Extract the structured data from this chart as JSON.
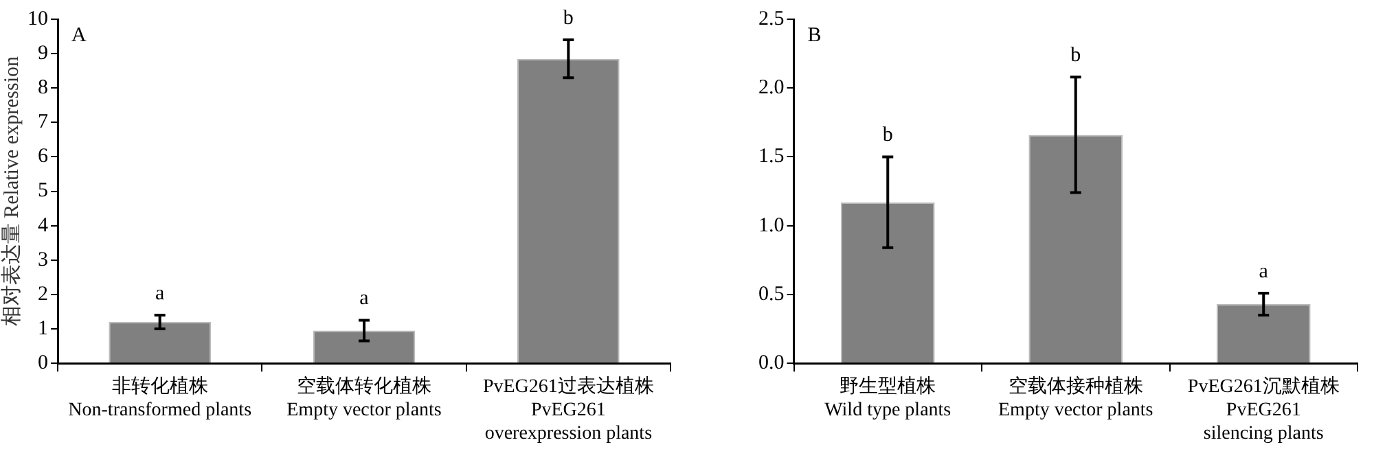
{
  "chart_data": [
    {
      "type": "bar",
      "ylabel": "相对表达量 Relative expression",
      "categories": [
        "非转化植株\nNon-transformed plants",
        "空载体转化植株\nEmpty vector plants",
        "PvEG261过表达植株\nPvEG261\noverexpression plants"
      ],
      "values": [
        1.2,
        0.95,
        8.85
      ],
      "errors": [
        0.2,
        0.3,
        0.55
      ],
      "color": "#808080",
      "ylim": [
        0,
        10
      ],
      "yticks": [
        0,
        1,
        2,
        3,
        4,
        5,
        6,
        7,
        8,
        9,
        10
      ],
      "grid": false,
      "legend": false,
      "annotations": [
        "A",
        "a",
        "a",
        "b"
      ]
    },
    {
      "type": "bar",
      "categories": [
        "野生型植株\nWild type plants",
        "空载体接种植株\nEmpty vector plants",
        "PvEG261沉默植株\nPvEG261\nsilencing plants"
      ],
      "values": [
        1.17,
        1.66,
        0.43
      ],
      "errors": [
        0.33,
        0.42,
        0.08
      ],
      "color": "#808080",
      "ylim": [
        0,
        2.5
      ],
      "yticks": [
        {
          "value": 0,
          "label": "0.0"
        },
        {
          "value": 0.5,
          "label": "0.5"
        },
        {
          "value": 1,
          "label": "1.0"
        },
        {
          "value": 1.5,
          "label": "1.5"
        },
        {
          "value": 2,
          "label": "2.0"
        },
        {
          "value": 2.5,
          "label": "2.5"
        }
      ],
      "grid": false,
      "legend": false,
      "annotations": [
        "B",
        "b",
        "b",
        "a"
      ]
    }
  ]
}
